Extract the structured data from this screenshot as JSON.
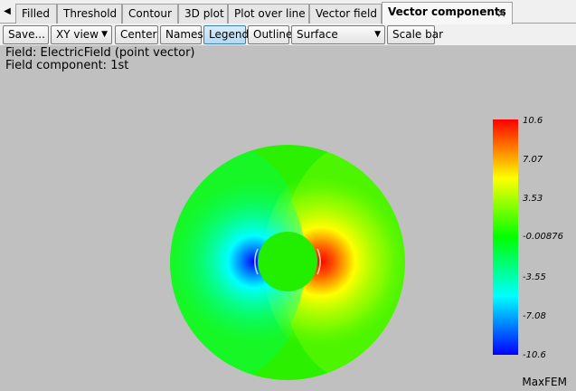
{
  "tabs": {
    "items": [
      {
        "label": "Filled"
      },
      {
        "label": "Threshold"
      },
      {
        "label": "Contour"
      },
      {
        "label": "3D plot"
      },
      {
        "label": "Plot over line"
      },
      {
        "label": "Vector field"
      },
      {
        "label": "Vector components",
        "active": true
      }
    ],
    "close_glyph": "×"
  },
  "toolbar": {
    "save_label": "Save...",
    "view_select": "XY view",
    "center_label": "Center",
    "names_label": "Names",
    "legend_label": "Legend",
    "outline_label": "Outline",
    "surface_select": "Surface",
    "scalebar_label": "Scale bar"
  },
  "info": {
    "field_line": "Field: ElectricField (point vector)",
    "component_line": "Field component: 1st"
  },
  "legend": {
    "ticks": [
      "10.6",
      "7.07",
      "3.53",
      "-0.00876",
      "-3.55",
      "-7.08",
      "-10.6"
    ]
  },
  "brand": "MaxFEM",
  "colors": {
    "background": "#c0c0c0",
    "positive": "#ff0000",
    "negative": "#0000ff",
    "zero": "#00ff00",
    "active_button": "#b6d8f2"
  }
}
